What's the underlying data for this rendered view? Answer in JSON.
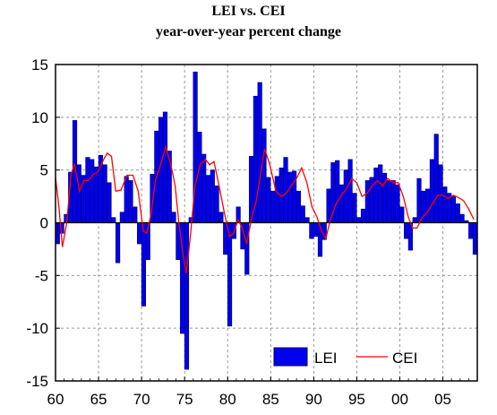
{
  "chart_data": {
    "type": "bar+line",
    "title": "LEI vs. CEI",
    "subtitle": "year-over-year percent change",
    "xlim": [
      1960,
      2009
    ],
    "ylim": [
      -15,
      15
    ],
    "yticks": [
      15,
      10,
      5,
      0,
      -5,
      -10,
      -15
    ],
    "xtick_labels": [
      "60",
      "65",
      "70",
      "75",
      "80",
      "85",
      "90",
      "95",
      "00",
      "05"
    ],
    "xtick_years": [
      1960,
      1965,
      1970,
      1975,
      1980,
      1985,
      1990,
      1995,
      2000,
      2005
    ],
    "grid": true,
    "legend_position": "bottom-right",
    "colors": {
      "lei_fill": "#0000ee",
      "lei_edge": "#000066",
      "cei": "#ff0000",
      "grid": "#999999"
    },
    "series": [
      {
        "name": "LEI",
        "kind": "bar",
        "points": [
          [
            1960.0,
            -2
          ],
          [
            1960.5,
            -1
          ],
          [
            1961.0,
            0.8
          ],
          [
            1961.5,
            4.8
          ],
          [
            1962.0,
            9.7
          ],
          [
            1962.5,
            5.5
          ],
          [
            1963.0,
            4.5
          ],
          [
            1963.5,
            6.2
          ],
          [
            1964.0,
            6.0
          ],
          [
            1964.5,
            5.3
          ],
          [
            1965.0,
            6.4
          ],
          [
            1965.5,
            5.5
          ],
          [
            1966.0,
            3.8
          ],
          [
            1966.5,
            0.5
          ],
          [
            1967.0,
            -3.8
          ],
          [
            1967.5,
            1.0
          ],
          [
            1968.0,
            4.4
          ],
          [
            1968.5,
            4.0
          ],
          [
            1969.0,
            1.5
          ],
          [
            1969.5,
            -2.0
          ],
          [
            1970.0,
            -7.9
          ],
          [
            1970.5,
            -3.5
          ],
          [
            1971.0,
            4.6
          ],
          [
            1971.5,
            8.7
          ],
          [
            1972.0,
            10.0
          ],
          [
            1972.5,
            10.5
          ],
          [
            1973.0,
            6.8
          ],
          [
            1973.5,
            1.0
          ],
          [
            1974.0,
            -3.5
          ],
          [
            1974.5,
            -10.5
          ],
          [
            1975.0,
            -13.9
          ],
          [
            1975.5,
            0.5
          ],
          [
            1976.0,
            14.3
          ],
          [
            1976.5,
            8.6
          ],
          [
            1977.0,
            6.5
          ],
          [
            1977.5,
            4.5
          ],
          [
            1978.0,
            5.0
          ],
          [
            1978.5,
            3.5
          ],
          [
            1979.0,
            1.0
          ],
          [
            1979.5,
            -3.0
          ],
          [
            1980.0,
            -9.8
          ],
          [
            1980.5,
            -1.5
          ],
          [
            1981.0,
            1.5
          ],
          [
            1981.5,
            -2.5
          ],
          [
            1982.0,
            -4.9
          ],
          [
            1982.5,
            6.3
          ],
          [
            1983.0,
            12.0
          ],
          [
            1983.5,
            13.3
          ],
          [
            1984.0,
            8.9
          ],
          [
            1984.5,
            4.3
          ],
          [
            1985.0,
            3.0
          ],
          [
            1985.5,
            4.4
          ],
          [
            1986.0,
            5.2
          ],
          [
            1986.5,
            6.2
          ],
          [
            1987.0,
            4.8
          ],
          [
            1987.5,
            4.9
          ],
          [
            1988.0,
            3.0
          ],
          [
            1988.5,
            1.6
          ],
          [
            1989.0,
            0.5
          ],
          [
            1989.5,
            -1.5
          ],
          [
            1990.0,
            -1.3
          ],
          [
            1990.5,
            -3.2
          ],
          [
            1991.0,
            -1.6
          ],
          [
            1991.5,
            3.2
          ],
          [
            1992.0,
            5.7
          ],
          [
            1992.5,
            5.9
          ],
          [
            1993.0,
            3.6
          ],
          [
            1993.5,
            5.0
          ],
          [
            1994.0,
            6.0
          ],
          [
            1994.5,
            2.8
          ],
          [
            1995.0,
            0.5
          ],
          [
            1995.5,
            1.3
          ],
          [
            1996.0,
            4.0
          ],
          [
            1996.5,
            4.3
          ],
          [
            1997.0,
            5.2
          ],
          [
            1997.5,
            5.5
          ],
          [
            1998.0,
            4.7
          ],
          [
            1998.5,
            4.0
          ],
          [
            1999.0,
            4.0
          ],
          [
            1999.5,
            3.6
          ],
          [
            2000.0,
            1.5
          ],
          [
            2000.5,
            -1.5
          ],
          [
            2001.0,
            -2.6
          ],
          [
            2001.5,
            0.5
          ],
          [
            2002.0,
            4.2
          ],
          [
            2002.5,
            3.0
          ],
          [
            2003.0,
            3.2
          ],
          [
            2003.5,
            6.0
          ],
          [
            2004.0,
            8.4
          ],
          [
            2004.5,
            5.5
          ],
          [
            2005.0,
            3.4
          ],
          [
            2005.5,
            2.8
          ],
          [
            2006.0,
            2.5
          ],
          [
            2006.5,
            1.8
          ],
          [
            2007.0,
            0.8
          ],
          [
            2007.5,
            0.2
          ],
          [
            2008.0,
            -1.5
          ],
          [
            2008.5,
            -3.0
          ]
        ]
      },
      {
        "name": "CEI",
        "kind": "line",
        "points": [
          [
            1960.0,
            4.3
          ],
          [
            1960.4,
            1.5
          ],
          [
            1960.8,
            -2.3
          ],
          [
            1961.3,
            0.0
          ],
          [
            1961.8,
            4.5
          ],
          [
            1962.2,
            5.6
          ],
          [
            1962.8,
            3.0
          ],
          [
            1963.3,
            4.0
          ],
          [
            1963.8,
            4.0
          ],
          [
            1964.4,
            4.6
          ],
          [
            1964.9,
            4.8
          ],
          [
            1965.6,
            6.0
          ],
          [
            1966.0,
            6.6
          ],
          [
            1966.5,
            6.3
          ],
          [
            1967.0,
            3.0
          ],
          [
            1967.6,
            3.1
          ],
          [
            1968.3,
            4.5
          ],
          [
            1969.0,
            4.5
          ],
          [
            1969.6,
            3.0
          ],
          [
            1970.2,
            -0.8
          ],
          [
            1970.6,
            -1.0
          ],
          [
            1971.1,
            0.8
          ],
          [
            1971.6,
            4.0
          ],
          [
            1972.2,
            5.5
          ],
          [
            1972.8,
            7.2
          ],
          [
            1973.4,
            5.5
          ],
          [
            1973.9,
            3.5
          ],
          [
            1974.3,
            0.2
          ],
          [
            1974.8,
            -3.0
          ],
          [
            1975.2,
            -4.8
          ],
          [
            1975.7,
            -1.0
          ],
          [
            1976.2,
            3.5
          ],
          [
            1976.8,
            5.5
          ],
          [
            1977.4,
            6.0
          ],
          [
            1977.9,
            5.5
          ],
          [
            1978.4,
            5.8
          ],
          [
            1979.0,
            3.5
          ],
          [
            1979.6,
            1.0
          ],
          [
            1980.2,
            -1.3
          ],
          [
            1980.7,
            -1.0
          ],
          [
            1981.2,
            0.3
          ],
          [
            1981.7,
            -0.5
          ],
          [
            1982.2,
            -2.0
          ],
          [
            1982.8,
            0.5
          ],
          [
            1983.3,
            2.0
          ],
          [
            1983.8,
            4.5
          ],
          [
            1984.3,
            7.0
          ],
          [
            1984.9,
            5.5
          ],
          [
            1985.6,
            3.0
          ],
          [
            1986.2,
            2.5
          ],
          [
            1986.8,
            2.8
          ],
          [
            1987.4,
            3.5
          ],
          [
            1988.0,
            4.2
          ],
          [
            1988.6,
            5.2
          ],
          [
            1989.2,
            3.8
          ],
          [
            1989.8,
            1.5
          ],
          [
            1990.4,
            0.5
          ],
          [
            1990.9,
            -0.8
          ],
          [
            1991.4,
            -1.5
          ],
          [
            1992.0,
            0.5
          ],
          [
            1992.6,
            1.8
          ],
          [
            1993.2,
            2.6
          ],
          [
            1993.8,
            3.2
          ],
          [
            1994.4,
            4.2
          ],
          [
            1995.0,
            3.8
          ],
          [
            1995.6,
            2.5
          ],
          [
            1996.2,
            2.8
          ],
          [
            1996.8,
            3.5
          ],
          [
            1997.4,
            4.0
          ],
          [
            1998.0,
            3.5
          ],
          [
            1998.6,
            4.2
          ],
          [
            1999.2,
            3.8
          ],
          [
            1999.8,
            3.8
          ],
          [
            2000.4,
            2.5
          ],
          [
            2001.0,
            0.5
          ],
          [
            2001.5,
            -0.5
          ],
          [
            2002.0,
            -0.5
          ],
          [
            2002.6,
            0.5
          ],
          [
            2003.2,
            1.0
          ],
          [
            2003.8,
            1.8
          ],
          [
            2004.4,
            2.6
          ],
          [
            2005.0,
            2.6
          ],
          [
            2005.6,
            2.3
          ],
          [
            2006.2,
            2.6
          ],
          [
            2006.8,
            2.4
          ],
          [
            2007.4,
            2.1
          ],
          [
            2008.0,
            1.3
          ],
          [
            2008.6,
            0.3
          ]
        ]
      }
    ]
  }
}
